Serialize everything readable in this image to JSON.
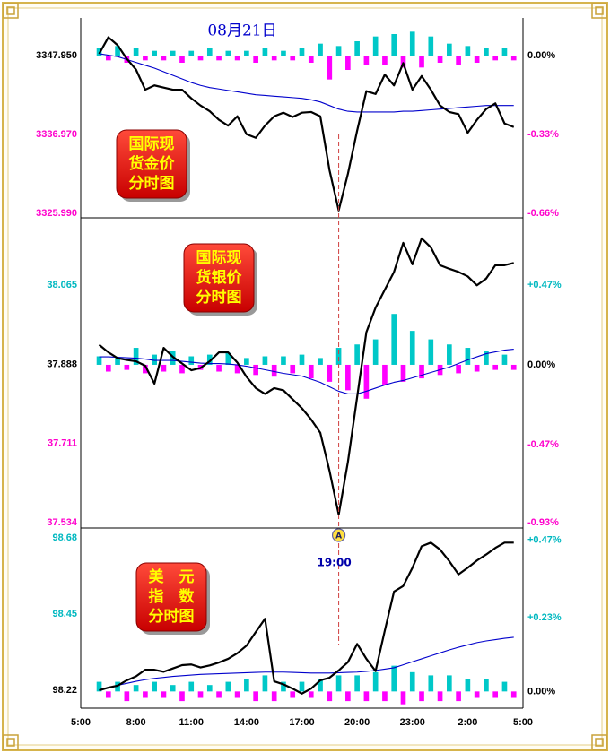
{
  "date": "08月21日",
  "marker": {
    "x": 14,
    "icon": "A",
    "label": "19:00"
  },
  "chart_data": [
    {
      "type": "line",
      "label": [
        "国际现",
        "货金价",
        "分时图"
      ],
      "x": [
        1,
        1.5,
        2,
        2.5,
        3,
        3.5,
        4,
        4.5,
        5,
        5.5,
        6,
        6.5,
        7,
        7.5,
        8,
        8.5,
        9,
        9.5,
        10,
        10.5,
        11,
        11.5,
        12,
        12.5,
        13,
        13.5,
        14,
        14.5,
        15,
        15.5,
        16,
        16.5,
        17,
        17.5,
        18,
        18.5,
        19,
        19.5,
        20,
        20.5,
        21,
        21.5,
        22,
        22.5,
        23,
        23.5
      ],
      "xlim": [
        0,
        24
      ],
      "ylim": [
        3325.99,
        3352.44
      ],
      "yticks": [
        {
          "value": 3347.95,
          "label": "3347.950"
        },
        {
          "value": 3336.97,
          "label": "3336.970"
        },
        {
          "value": 3325.99,
          "label": "3325.990"
        }
      ],
      "y2lim": [
        -0.66,
        0.135
      ],
      "y2ticks": [
        {
          "value": 0,
          "label": "0.00%"
        },
        {
          "value": -0.33,
          "label": "-0.33%"
        },
        {
          "value": -0.66,
          "label": "-0.66%"
        }
      ],
      "series": [
        {
          "type": "bar",
          "axis": "y2",
          "colors": [
            "#00c8c8",
            "#ff00ff"
          ],
          "values": [
            0.03,
            -0.02,
            0.04,
            -0.03,
            0.03,
            -0.02,
            0.02,
            -0.02,
            0.02,
            -0.03,
            0.02,
            -0.02,
            0.03,
            -0.02,
            0.02,
            -0.02,
            0.02,
            -0.03,
            0.03,
            -0.02,
            0.02,
            -0.02,
            0.03,
            -0.03,
            0.05,
            -0.1,
            0.04,
            -0.06,
            0.06,
            -0.04,
            0.08,
            -0.04,
            0.09,
            -0.05,
            0.1,
            -0.05,
            0.08,
            -0.03,
            0.05,
            -0.04,
            0.04,
            -0.03,
            0.03,
            -0.02,
            0.03,
            -0.02
          ]
        },
        {
          "type": "line",
          "color": "#0000cc",
          "values": [
            3348.2,
            3348.0,
            3347.8,
            3347.4,
            3347.0,
            3346.6,
            3346.2,
            3345.7,
            3345.2,
            3344.7,
            3344.2,
            3343.8,
            3343.5,
            3343.3,
            3343.1,
            3342.9,
            3342.7,
            3342.5,
            3342.4,
            3342.3,
            3342.2,
            3342.1,
            3342.0,
            3341.8,
            3341.5,
            3341.0,
            3340.5,
            3340.2,
            3340.1,
            3340.1,
            3340.1,
            3340.1,
            3340.1,
            3340.2,
            3340.2,
            3340.3,
            3340.4,
            3340.5,
            3340.6,
            3340.7,
            3340.8,
            3340.9,
            3341.0,
            3341.0,
            3341.0,
            3341.0
          ]
        },
        {
          "type": "line",
          "color": "#000000",
          "values": [
            3348.2,
            3350.5,
            3349.4,
            3347.5,
            3346.0,
            3343.2,
            3343.8,
            3343.5,
            3343.2,
            3343.2,
            3342.0,
            3341.0,
            3340.2,
            3339.0,
            3338.2,
            3339.5,
            3337.0,
            3336.5,
            3338.2,
            3339.5,
            3340.0,
            3339.4,
            3340.0,
            3340.1,
            3339.5,
            3332.0,
            3326.4,
            3331.5,
            3337.5,
            3343.0,
            3342.6,
            3345.3,
            3343.8,
            3346.9,
            3343.2,
            3345.1,
            3343.2,
            3341.0,
            3340.1,
            3339.8,
            3337.2,
            3339.0,
            3340.5,
            3341.3,
            3338.5,
            3338.0
          ]
        }
      ]
    },
    {
      "type": "line",
      "label": [
        "国际现",
        "货银价",
        "分时图"
      ],
      "x": [
        1,
        1.5,
        2,
        2.5,
        3,
        3.5,
        4,
        4.5,
        5,
        5.5,
        6,
        6.5,
        7,
        7.5,
        8,
        8.5,
        9,
        9.5,
        10,
        10.5,
        11,
        11.5,
        12,
        12.5,
        13,
        13.5,
        14,
        14.5,
        15,
        15.5,
        16,
        16.5,
        17,
        17.5,
        18,
        18.5,
        19,
        19.5,
        20,
        20.5,
        21,
        21.5,
        22,
        22.5,
        23,
        23.5
      ],
      "xlim": [
        0,
        24
      ],
      "ylim": [
        37.53,
        38.212
      ],
      "yticks": [
        38.065,
        37.888,
        37.711,
        37.534
      ],
      "y2lim": [
        -0.941,
        0.856
      ],
      "y2ticks": [
        {
          "value": 0.47,
          "label": "+0.47%"
        },
        {
          "value": 0,
          "label": "0.00%"
        },
        {
          "value": -0.47,
          "label": "-0.47%"
        },
        {
          "value": -0.93,
          "label": "-0.93%"
        }
      ],
      "series": [
        {
          "type": "bar",
          "axis": "y2",
          "colors": [
            "#00c8c8",
            "#ff00ff"
          ],
          "values": [
            0.05,
            -0.04,
            0.04,
            -0.03,
            0.1,
            -0.05,
            0.06,
            -0.04,
            0.08,
            -0.05,
            0.05,
            -0.03,
            0.06,
            -0.04,
            0.07,
            -0.05,
            0.04,
            -0.06,
            0.05,
            -0.07,
            0.05,
            -0.05,
            0.06,
            -0.08,
            0.04,
            -0.1,
            0.1,
            -0.15,
            0.12,
            -0.2,
            0.15,
            -0.12,
            0.3,
            -0.1,
            0.2,
            -0.08,
            0.15,
            -0.06,
            0.12,
            -0.05,
            0.1,
            -0.04,
            0.08,
            -0.03,
            0.06,
            -0.03
          ]
        },
        {
          "type": "line",
          "color": "#0000cc",
          "values": [
            37.905,
            37.905,
            37.904,
            37.903,
            37.902,
            37.9,
            37.897,
            37.897,
            37.897,
            37.895,
            37.893,
            37.891,
            37.89,
            37.89,
            37.889,
            37.887,
            37.884,
            37.88,
            37.876,
            37.872,
            37.868,
            37.865,
            37.862,
            37.855,
            37.848,
            37.838,
            37.828,
            37.822,
            37.822,
            37.828,
            37.835,
            37.842,
            37.848,
            37.852,
            37.858,
            37.864,
            37.87,
            37.876,
            37.882,
            37.89,
            37.898,
            37.905,
            37.912,
            37.916,
            37.92,
            37.922
          ]
        },
        {
          "type": "line",
          "color": "#000000",
          "values": [
            37.932,
            37.915,
            37.902,
            37.898,
            37.895,
            37.885,
            37.845,
            37.925,
            37.905,
            37.89,
            37.875,
            37.88,
            37.895,
            37.915,
            37.915,
            37.892,
            37.86,
            37.835,
            37.822,
            37.835,
            37.83,
            37.81,
            37.79,
            37.765,
            37.735,
            37.65,
            37.552,
            37.67,
            37.815,
            37.96,
            38.015,
            38.055,
            38.095,
            38.16,
            38.112,
            38.17,
            38.15,
            38.11,
            38.102,
            38.095,
            38.085,
            38.065,
            38.08,
            38.11,
            38.11,
            38.115
          ]
        }
      ]
    },
    {
      "type": "line",
      "label": [
        "美　元",
        "指　数",
        "分时图"
      ],
      "x": [
        1,
        1.5,
        2,
        2.5,
        3,
        3.5,
        4,
        4.5,
        5,
        5.5,
        6,
        6.5,
        7,
        7.5,
        8,
        8.5,
        9,
        9.5,
        10,
        10.5,
        11,
        11.5,
        12,
        12.5,
        13,
        13.5,
        14,
        14.5,
        15,
        15.5,
        16,
        16.5,
        17,
        17.5,
        18,
        18.5,
        19,
        19.5,
        20,
        20.5,
        21,
        21.5,
        22,
        22.5,
        23,
        23.5
      ],
      "xlim": [
        0,
        24
      ],
      "xticks": [
        {
          "value": 0,
          "label": "5:00"
        },
        {
          "value": 3,
          "label": "8:00"
        },
        {
          "value": 6,
          "label": "11:00"
        },
        {
          "value": 9,
          "label": "14:00"
        },
        {
          "value": 12,
          "label": "17:00"
        },
        {
          "value": 15,
          "label": "20:00"
        },
        {
          "value": 18,
          "label": "23:00"
        },
        {
          "value": 21,
          "label": "2:00"
        },
        {
          "value": 24,
          "label": "5:00"
        }
      ],
      "ylim": [
        98.166,
        98.702
      ],
      "yticks": [
        98.68,
        98.45,
        98.22
      ],
      "y2lim": [
        -0.052,
        0.5
      ],
      "y2ticks": [
        {
          "value": 0.47,
          "label": "+0.47%"
        },
        {
          "value": 0.23,
          "label": "+0.23%"
        },
        {
          "value": 0,
          "label": "0.00%"
        }
      ],
      "series": [
        {
          "type": "bar",
          "axis": "y2",
          "colors": [
            "#00c8c8",
            "#ff00ff"
          ],
          "values": [
            0.03,
            -0.02,
            0.03,
            -0.03,
            0.02,
            -0.02,
            0.03,
            -0.02,
            0.02,
            -0.03,
            0.03,
            -0.02,
            0.02,
            -0.02,
            0.03,
            -0.02,
            0.04,
            -0.03,
            0.05,
            -0.03,
            0.03,
            -0.02,
            0.03,
            -0.02,
            0.04,
            -0.03,
            0.05,
            -0.03,
            0.05,
            -0.03,
            0.06,
            -0.03,
            0.08,
            -0.04,
            0.06,
            -0.03,
            0.05,
            -0.03,
            0.05,
            -0.03,
            0.04,
            -0.02,
            0.04,
            -0.02,
            0.03,
            -0.02
          ]
        },
        {
          "type": "line",
          "color": "#0000cc",
          "values": [
            98.22,
            98.228,
            98.235,
            98.241,
            98.247,
            98.252,
            98.256,
            98.259,
            98.262,
            98.264,
            98.266,
            98.268,
            98.269,
            98.27,
            98.271,
            98.272,
            98.273,
            98.274,
            98.275,
            98.275,
            98.275,
            98.274,
            98.273,
            98.272,
            98.272,
            98.272,
            98.273,
            98.274,
            98.275,
            98.277,
            98.28,
            98.284,
            98.288,
            98.297,
            98.306,
            98.315,
            98.324,
            98.333,
            98.342,
            98.35,
            98.357,
            98.364,
            98.369,
            98.373,
            98.377,
            98.38
          ]
        },
        {
          "type": "line",
          "color": "#000000",
          "values": [
            98.22,
            98.228,
            98.234,
            98.25,
            98.262,
            98.282,
            98.282,
            98.276,
            98.286,
            98.296,
            98.298,
            98.289,
            98.295,
            98.304,
            98.315,
            98.332,
            98.355,
            98.396,
            98.436,
            98.247,
            98.238,
            98.225,
            98.21,
            98.225,
            98.25,
            98.258,
            98.28,
            98.305,
            98.36,
            98.315,
            98.278,
            98.4,
            98.518,
            98.535,
            98.59,
            98.655,
            98.666,
            98.645,
            98.61,
            98.57,
            98.59,
            98.612,
            98.63,
            98.65,
            98.666,
            98.666
          ]
        }
      ]
    }
  ]
}
